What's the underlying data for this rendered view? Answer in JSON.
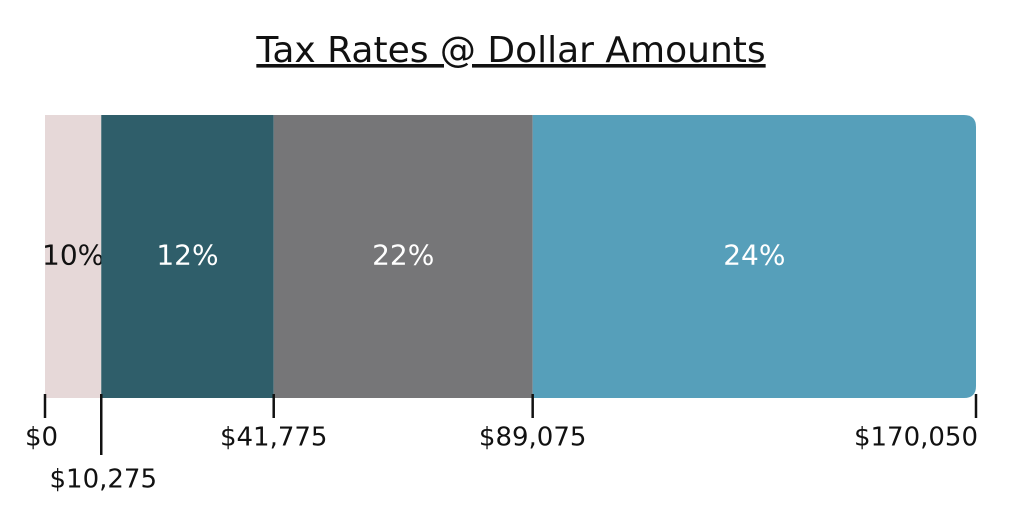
{
  "chart_data": {
    "type": "segmented-bar",
    "title": "Tax Rates @ Dollar Amounts",
    "values": [
      10,
      12,
      22,
      24
    ],
    "value_labels": [
      "10%",
      "12%",
      "22%",
      "24%"
    ],
    "colors": [
      "#e6d8d8",
      "#2f5e6a",
      "#767678",
      "#569fba"
    ],
    "xlim": [
      0,
      170050
    ],
    "xticks": [
      {
        "value": 0,
        "label": "$0"
      },
      {
        "value": 10275,
        "label": "$10,275"
      },
      {
        "value": 41775,
        "label": "$41,775"
      },
      {
        "value": 89075,
        "label": "$89,075"
      },
      {
        "value": 170050,
        "label": "$170,050"
      }
    ]
  }
}
